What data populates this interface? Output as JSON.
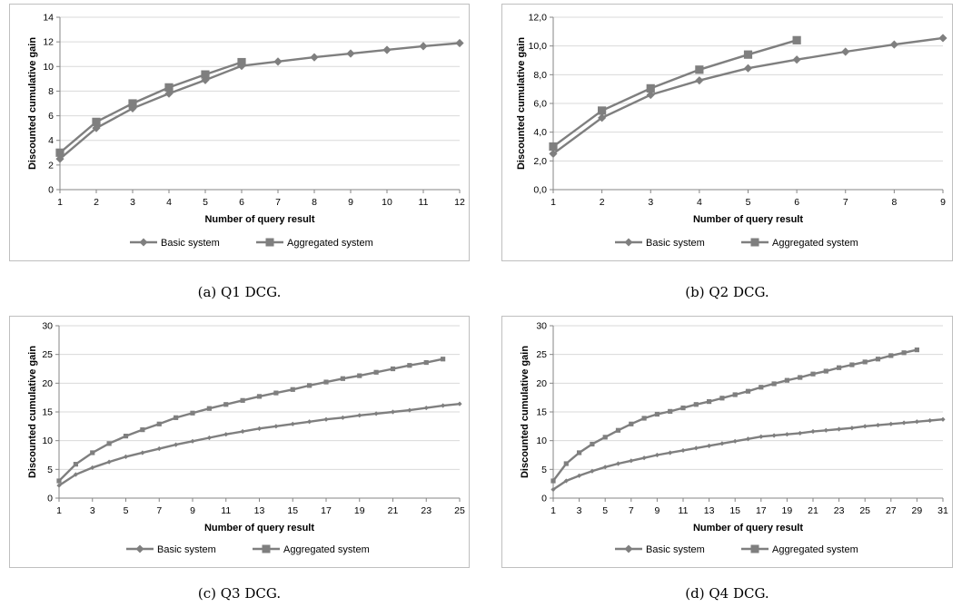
{
  "colors": {
    "series": "#7f7f7f",
    "grid": "#d9d9d9",
    "axis": "#868686",
    "border": "#bfbfbf"
  },
  "chart_data": [
    {
      "type": "line",
      "caption": "(a)  Q1 DCG.",
      "xlabel": "Number of query result",
      "ylabel": "Discounted cumulative gain",
      "x_ticks": [
        "1",
        "2",
        "3",
        "4",
        "5",
        "6",
        "7",
        "8",
        "9",
        "10",
        "11",
        "12"
      ],
      "y_ticks": [
        "0",
        "2",
        "4",
        "6",
        "8",
        "10",
        "12",
        "14"
      ],
      "ylim": [
        0,
        14
      ],
      "grid": "horizontal",
      "legend_position": "bottom",
      "series": [
        {
          "name": "Basic system",
          "marker": "diamond",
          "x": [
            1,
            2,
            3,
            4,
            5,
            6,
            7,
            8,
            9,
            10,
            11,
            12
          ],
          "values": [
            2.5,
            5.0,
            6.6,
            7.8,
            8.9,
            10.05,
            10.4,
            10.75,
            11.05,
            11.35,
            11.65,
            11.9
          ]
        },
        {
          "name": "Aggregated system",
          "marker": "square",
          "x": [
            1,
            2,
            3,
            4,
            5,
            6
          ],
          "values": [
            3.0,
            5.5,
            7.0,
            8.3,
            9.35,
            10.35
          ]
        }
      ]
    },
    {
      "type": "line",
      "caption": "(b)  Q2 DCG.",
      "xlabel": "Number of query result",
      "ylabel": "Discounted cumulative gain",
      "x_ticks": [
        "1",
        "2",
        "3",
        "4",
        "5",
        "6",
        "7",
        "8",
        "9"
      ],
      "y_ticks": [
        "0,0",
        "2,0",
        "4,0",
        "6,0",
        "8,0",
        "10,0",
        "12,0"
      ],
      "ylim": [
        0,
        12
      ],
      "grid": "horizontal",
      "legend_position": "bottom",
      "series": [
        {
          "name": "Basic system",
          "marker": "diamond",
          "x": [
            1,
            2,
            3,
            4,
            5,
            6,
            7,
            8,
            9
          ],
          "values": [
            2.5,
            5.0,
            6.6,
            7.6,
            8.45,
            9.05,
            9.6,
            10.1,
            10.55
          ]
        },
        {
          "name": "Aggregated system",
          "marker": "square",
          "x": [
            1,
            2,
            3,
            4,
            5,
            6
          ],
          "values": [
            3.0,
            5.5,
            7.05,
            8.35,
            9.4,
            10.4
          ]
        }
      ]
    },
    {
      "type": "line",
      "caption": "(c)  Q3 DCG.",
      "xlabel": "Number of query result",
      "ylabel": "Discounted cumulative gain",
      "x_ticks": [
        "1",
        "3",
        "5",
        "7",
        "9",
        "11",
        "13",
        "15",
        "17",
        "19",
        "21",
        "23",
        "25"
      ],
      "y_ticks": [
        "0",
        "5",
        "10",
        "15",
        "20",
        "25",
        "30"
      ],
      "ylim": [
        0,
        30
      ],
      "grid": "horizontal",
      "legend_position": "bottom",
      "series": [
        {
          "name": "Basic system",
          "marker": "diamond",
          "x": [
            1,
            2,
            3,
            4,
            5,
            6,
            7,
            8,
            9,
            10,
            11,
            12,
            13,
            14,
            15,
            16,
            17,
            18,
            19,
            20,
            21,
            22,
            23,
            24,
            25
          ],
          "values": [
            2.2,
            4.1,
            5.3,
            6.3,
            7.2,
            7.9,
            8.6,
            9.3,
            9.9,
            10.5,
            11.1,
            11.6,
            12.1,
            12.5,
            12.9,
            13.3,
            13.7,
            14.0,
            14.4,
            14.7,
            15.0,
            15.3,
            15.7,
            16.1,
            16.4
          ]
        },
        {
          "name": "Aggregated system",
          "marker": "square",
          "x": [
            1,
            2,
            3,
            4,
            5,
            6,
            7,
            8,
            9,
            10,
            11,
            12,
            13,
            14,
            15,
            16,
            17,
            18,
            19,
            20,
            21,
            22,
            23,
            24
          ],
          "values": [
            3.0,
            5.9,
            7.9,
            9.5,
            10.8,
            11.9,
            12.9,
            14.0,
            14.8,
            15.6,
            16.3,
            17.0,
            17.7,
            18.3,
            18.9,
            19.6,
            20.2,
            20.8,
            21.3,
            21.9,
            22.5,
            23.1,
            23.6,
            24.2
          ]
        }
      ]
    },
    {
      "type": "line",
      "caption": "(d)  Q4 DCG.",
      "xlabel": "Number of query result",
      "ylabel": "Discounted cumulative gain",
      "x_ticks": [
        "1",
        "3",
        "5",
        "7",
        "9",
        "11",
        "13",
        "15",
        "17",
        "19",
        "21",
        "23",
        "25",
        "27",
        "29",
        "31"
      ],
      "y_ticks": [
        "0",
        "5",
        "10",
        "15",
        "20",
        "25",
        "30"
      ],
      "ylim": [
        0,
        30
      ],
      "grid": "horizontal",
      "legend_position": "bottom",
      "series": [
        {
          "name": "Basic system",
          "marker": "diamond",
          "x": [
            1,
            2,
            3,
            4,
            5,
            6,
            7,
            8,
            9,
            10,
            11,
            12,
            13,
            14,
            15,
            16,
            17,
            18,
            19,
            20,
            21,
            22,
            23,
            24,
            25,
            26,
            27,
            28,
            29,
            30,
            31
          ],
          "values": [
            1.5,
            3.0,
            3.9,
            4.7,
            5.4,
            6.0,
            6.5,
            7.0,
            7.5,
            7.9,
            8.3,
            8.7,
            9.1,
            9.5,
            9.9,
            10.3,
            10.7,
            10.9,
            11.1,
            11.3,
            11.6,
            11.8,
            12.0,
            12.2,
            12.5,
            12.7,
            12.9,
            13.1,
            13.3,
            13.5,
            13.7
          ]
        },
        {
          "name": "Aggregated system",
          "marker": "square",
          "x": [
            1,
            2,
            3,
            4,
            5,
            6,
            7,
            8,
            9,
            10,
            11,
            12,
            13,
            14,
            15,
            16,
            17,
            18,
            19,
            20,
            21,
            22,
            23,
            24,
            25,
            26,
            27,
            28,
            29
          ],
          "values": [
            3.0,
            6.0,
            7.9,
            9.4,
            10.6,
            11.8,
            12.9,
            13.9,
            14.6,
            15.1,
            15.7,
            16.3,
            16.8,
            17.4,
            18.0,
            18.6,
            19.3,
            19.9,
            20.5,
            21.0,
            21.6,
            22.1,
            22.7,
            23.2,
            23.7,
            24.2,
            24.8,
            25.3,
            25.8
          ]
        }
      ]
    }
  ]
}
